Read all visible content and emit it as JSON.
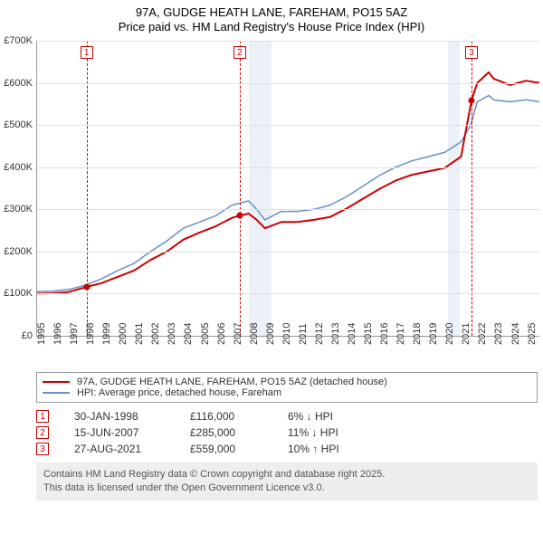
{
  "title": {
    "line1": "97A, GUDGE HEATH LANE, FAREHAM, PO15 5AZ",
    "line2": "Price paid vs. HM Land Registry's House Price Index (HPI)"
  },
  "chart": {
    "type": "line",
    "background_color": "#ffffff",
    "grid_color": "#e0e0e0",
    "axis_color": "#999999",
    "x_range": [
      1995,
      2025.8
    ],
    "y_range": [
      0,
      700000
    ],
    "y_ticks": [
      0,
      100000,
      200000,
      300000,
      400000,
      500000,
      600000,
      700000
    ],
    "y_tick_labels": [
      "£0",
      "£100K",
      "£200K",
      "£300K",
      "£400K",
      "£500K",
      "£600K",
      "£700K"
    ],
    "x_ticks": [
      1995,
      1996,
      1997,
      1998,
      1999,
      2000,
      2001,
      2002,
      2003,
      2004,
      2005,
      2006,
      2007,
      2008,
      2009,
      2010,
      2011,
      2012,
      2013,
      2014,
      2015,
      2016,
      2017,
      2018,
      2019,
      2020,
      2021,
      2022,
      2023,
      2024,
      2025
    ],
    "recession_shading": [
      {
        "start": 2008.0,
        "end": 2009.4
      },
      {
        "start": 2020.2,
        "end": 2020.9
      }
    ],
    "shade_color": "rgba(200,215,235,0.35)",
    "series": [
      {
        "id": "hpi",
        "label": "HPI: Average price, detached house, Fareham",
        "color": "#6a8fc7",
        "width": 1.5,
        "points": [
          [
            1995.0,
            105000
          ],
          [
            1996.0,
            106000
          ],
          [
            1997.0,
            110000
          ],
          [
            1998.0,
            120000
          ],
          [
            1999.0,
            135000
          ],
          [
            2000.0,
            155000
          ],
          [
            2001.0,
            172000
          ],
          [
            2002.0,
            200000
          ],
          [
            2003.0,
            225000
          ],
          [
            2004.0,
            255000
          ],
          [
            2005.0,
            270000
          ],
          [
            2006.0,
            285000
          ],
          [
            2007.0,
            310000
          ],
          [
            2008.0,
            320000
          ],
          [
            2008.5,
            300000
          ],
          [
            2009.0,
            275000
          ],
          [
            2010.0,
            295000
          ],
          [
            2011.0,
            295000
          ],
          [
            2012.0,
            300000
          ],
          [
            2013.0,
            310000
          ],
          [
            2014.0,
            330000
          ],
          [
            2015.0,
            355000
          ],
          [
            2016.0,
            380000
          ],
          [
            2017.0,
            400000
          ],
          [
            2018.0,
            415000
          ],
          [
            2019.0,
            425000
          ],
          [
            2020.0,
            435000
          ],
          [
            2021.0,
            460000
          ],
          [
            2021.6,
            500000
          ],
          [
            2022.0,
            555000
          ],
          [
            2022.7,
            570000
          ],
          [
            2023.0,
            560000
          ],
          [
            2024.0,
            555000
          ],
          [
            2025.0,
            560000
          ],
          [
            2025.8,
            555000
          ]
        ]
      },
      {
        "id": "price",
        "label": "97A, GUDGE HEATH LANE, FAREHAM, PO15 5AZ (detached house)",
        "color": "#cc0000",
        "width": 2,
        "points": [
          [
            1995.0,
            100000
          ],
          [
            1996.0,
            101000
          ],
          [
            1997.0,
            104000
          ],
          [
            1998.08,
            116000
          ],
          [
            1999.0,
            125000
          ],
          [
            2000.0,
            140000
          ],
          [
            2001.0,
            155000
          ],
          [
            2002.0,
            180000
          ],
          [
            2003.0,
            200000
          ],
          [
            2004.0,
            228000
          ],
          [
            2005.0,
            245000
          ],
          [
            2006.0,
            260000
          ],
          [
            2007.0,
            280000
          ],
          [
            2007.45,
            285000
          ],
          [
            2008.0,
            290000
          ],
          [
            2008.5,
            275000
          ],
          [
            2009.0,
            255000
          ],
          [
            2010.0,
            270000
          ],
          [
            2011.0,
            270000
          ],
          [
            2012.0,
            275000
          ],
          [
            2013.0,
            282000
          ],
          [
            2014.0,
            302000
          ],
          [
            2015.0,
            325000
          ],
          [
            2016.0,
            348000
          ],
          [
            2017.0,
            368000
          ],
          [
            2018.0,
            382000
          ],
          [
            2019.0,
            390000
          ],
          [
            2020.0,
            398000
          ],
          [
            2021.0,
            425000
          ],
          [
            2021.65,
            559000
          ],
          [
            2022.0,
            600000
          ],
          [
            2022.7,
            625000
          ],
          [
            2023.0,
            610000
          ],
          [
            2024.0,
            595000
          ],
          [
            2025.0,
            605000
          ],
          [
            2025.8,
            600000
          ]
        ]
      }
    ],
    "sale_markers": [
      {
        "n": "1",
        "x": 1998.08,
        "y": 116000
      },
      {
        "n": "2",
        "x": 2007.45,
        "y": 285000
      },
      {
        "n": "3",
        "x": 2021.65,
        "y": 559000
      }
    ],
    "marker_color": "#cc0000"
  },
  "legend": {
    "items": [
      {
        "color": "#cc0000",
        "width": 2,
        "label": "97A, GUDGE HEATH LANE, FAREHAM, PO15 5AZ (detached house)"
      },
      {
        "color": "#6a8fc7",
        "width": 1.5,
        "label": "HPI: Average price, detached house, Fareham"
      }
    ]
  },
  "events": [
    {
      "n": "1",
      "date": "30-JAN-1998",
      "price": "£116,000",
      "diff": "6% ↓ HPI"
    },
    {
      "n": "2",
      "date": "15-JUN-2007",
      "price": "£285,000",
      "diff": "11% ↓ HPI"
    },
    {
      "n": "3",
      "date": "27-AUG-2021",
      "price": "£559,000",
      "diff": "10% ↑ HPI"
    }
  ],
  "footer": {
    "line1": "Contains HM Land Registry data © Crown copyright and database right 2025.",
    "line2": "This data is licensed under the Open Government Licence v3.0."
  }
}
